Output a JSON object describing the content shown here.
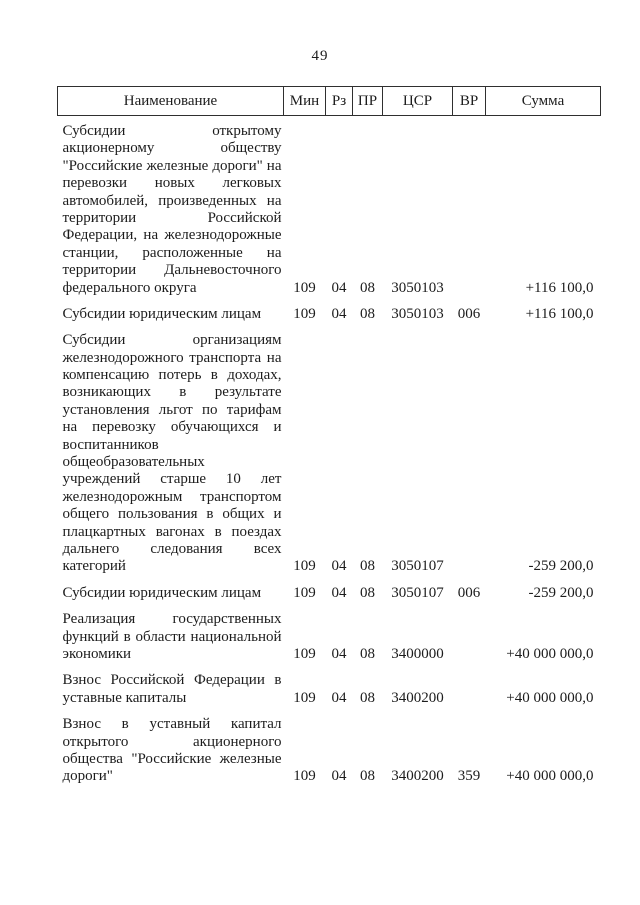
{
  "page": {
    "number": "49"
  },
  "table": {
    "headers": [
      "Наименование",
      "Мин",
      "Рз",
      "ПР",
      "ЦСР",
      "ВР",
      "Сумма"
    ],
    "rows": [
      {
        "name": "Субсидии открытому акционерному обществу \"Российские железные дороги\" на перевозки новых легковых автомобилей, произведенных на территории Российской Федерации, на железнодорожные станции, расположенные на территории Дальневосточного федерального округа",
        "min": "109",
        "rz": "04",
        "pr": "08",
        "csr": "3050103",
        "vr": "",
        "sum": "+116 100,0"
      },
      {
        "name": "Субсидии юридическим лицам",
        "min": "109",
        "rz": "04",
        "pr": "08",
        "csr": "3050103",
        "vr": "006",
        "sum": "+116 100,0"
      },
      {
        "name": "Субсидии организациям железнодорожного транспорта на компенсацию потерь в доходах, возникающих в результате установления льгот по тарифам на перевозку обучающихся и воспитанников общеобразовательных учреждений старше 10 лет железнодорожным транспортом общего пользования в общих и плацкартных вагонах в поездах дальнего следования всех категорий",
        "min": "109",
        "rz": "04",
        "pr": "08",
        "csr": "3050107",
        "vr": "",
        "sum": "-259 200,0"
      },
      {
        "name": "Субсидии юридическим лицам",
        "min": "109",
        "rz": "04",
        "pr": "08",
        "csr": "3050107",
        "vr": "006",
        "sum": "-259 200,0"
      },
      {
        "name": "Реализация государственных функций в области национальной экономики",
        "min": "109",
        "rz": "04",
        "pr": "08",
        "csr": "3400000",
        "vr": "",
        "sum": "+40 000 000,0"
      },
      {
        "name": "Взнос Российской Федерации в уставные капиталы",
        "min": "109",
        "rz": "04",
        "pr": "08",
        "csr": "3400200",
        "vr": "",
        "sum": "+40 000 000,0"
      },
      {
        "name": "Взнос в уставный капитал открытого акционерного общества \"Российские железные дороги\"",
        "min": "109",
        "rz": "04",
        "pr": "08",
        "csr": "3400200",
        "vr": "359",
        "sum": "+40 000 000,0"
      }
    ]
  }
}
